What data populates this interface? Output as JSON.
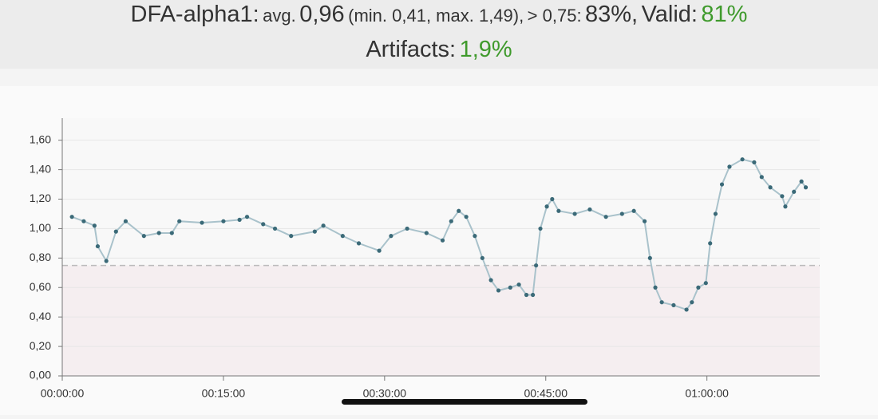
{
  "header": {
    "line1": [
      "DFA-alpha1:",
      "avg.",
      "0,96",
      "(min. 0,41, max. 1,49),",
      "> 0,75:",
      "83%,",
      "Valid:",
      "81%"
    ],
    "line2": [
      "Artifacts:",
      "1,9%"
    ]
  },
  "chart_data": {
    "type": "line",
    "x": [
      54,
      120,
      180,
      198,
      246,
      300,
      354,
      456,
      540,
      612,
      654,
      780,
      900,
      990,
      1032,
      1122,
      1188,
      1278,
      1410,
      1458,
      1566,
      1656,
      1770,
      1836,
      1926,
      2034,
      2124,
      2172,
      2214,
      2256,
      2304,
      2346,
      2394,
      2436,
      2502,
      2550,
      2592,
      2628,
      2646,
      2670,
      2706,
      2736,
      2772,
      2862,
      2946,
      3036,
      3126,
      3192,
      3252,
      3282,
      3312,
      3348,
      3414,
      3486,
      3516,
      3552,
      3594,
      3618,
      3648,
      3684,
      3726,
      3798,
      3864,
      3906,
      3954,
      4020,
      4038,
      4086,
      4128,
      4152
    ],
    "values": [
      1.08,
      1.05,
      1.02,
      0.88,
      0.78,
      0.98,
      1.05,
      0.95,
      0.97,
      0.97,
      1.05,
      1.04,
      1.05,
      1.06,
      1.08,
      1.03,
      1.0,
      0.95,
      0.98,
      1.02,
      0.95,
      0.9,
      0.85,
      0.95,
      1.0,
      0.97,
      0.92,
      1.05,
      1.12,
      1.08,
      0.95,
      0.8,
      0.65,
      0.58,
      0.6,
      0.62,
      0.55,
      0.55,
      0.75,
      1.0,
      1.15,
      1.2,
      1.12,
      1.1,
      1.13,
      1.08,
      1.1,
      1.12,
      1.05,
      0.8,
      0.6,
      0.5,
      0.48,
      0.45,
      0.5,
      0.6,
      0.63,
      0.9,
      1.1,
      1.3,
      1.42,
      1.47,
      1.45,
      1.35,
      1.28,
      1.22,
      1.15,
      1.25,
      1.32,
      1.28
    ],
    "color": "#3b6a78",
    "line_color": "#a9c2cb",
    "threshold": 0.75,
    "threshold_color": "#bbbbbb",
    "below_fill": "#f5eef0",
    "xlim": [
      0,
      4230
    ],
    "xticks": [
      {
        "value": 0,
        "label": "00:00:00"
      },
      {
        "value": 900,
        "label": "00:15:00"
      },
      {
        "value": 1800,
        "label": "00:30:00"
      },
      {
        "value": 2700,
        "label": "00:45:00"
      },
      {
        "value": 3600,
        "label": "01:00:00"
      }
    ],
    "ylim": [
      0,
      1.75
    ],
    "yticks": [
      {
        "value": 0,
        "label": "0,00"
      },
      {
        "value": 0.2,
        "label": "0,20"
      },
      {
        "value": 0.4,
        "label": "0,40"
      },
      {
        "value": 0.6,
        "label": "0,60"
      },
      {
        "value": 0.8,
        "label": "0,80"
      },
      {
        "value": 1,
        "label": "1,00"
      },
      {
        "value": 1.2,
        "label": "1,20"
      },
      {
        "value": 1.4,
        "label": "1,40"
      },
      {
        "value": 1.6,
        "label": "1,60"
      }
    ],
    "grid": true
  }
}
